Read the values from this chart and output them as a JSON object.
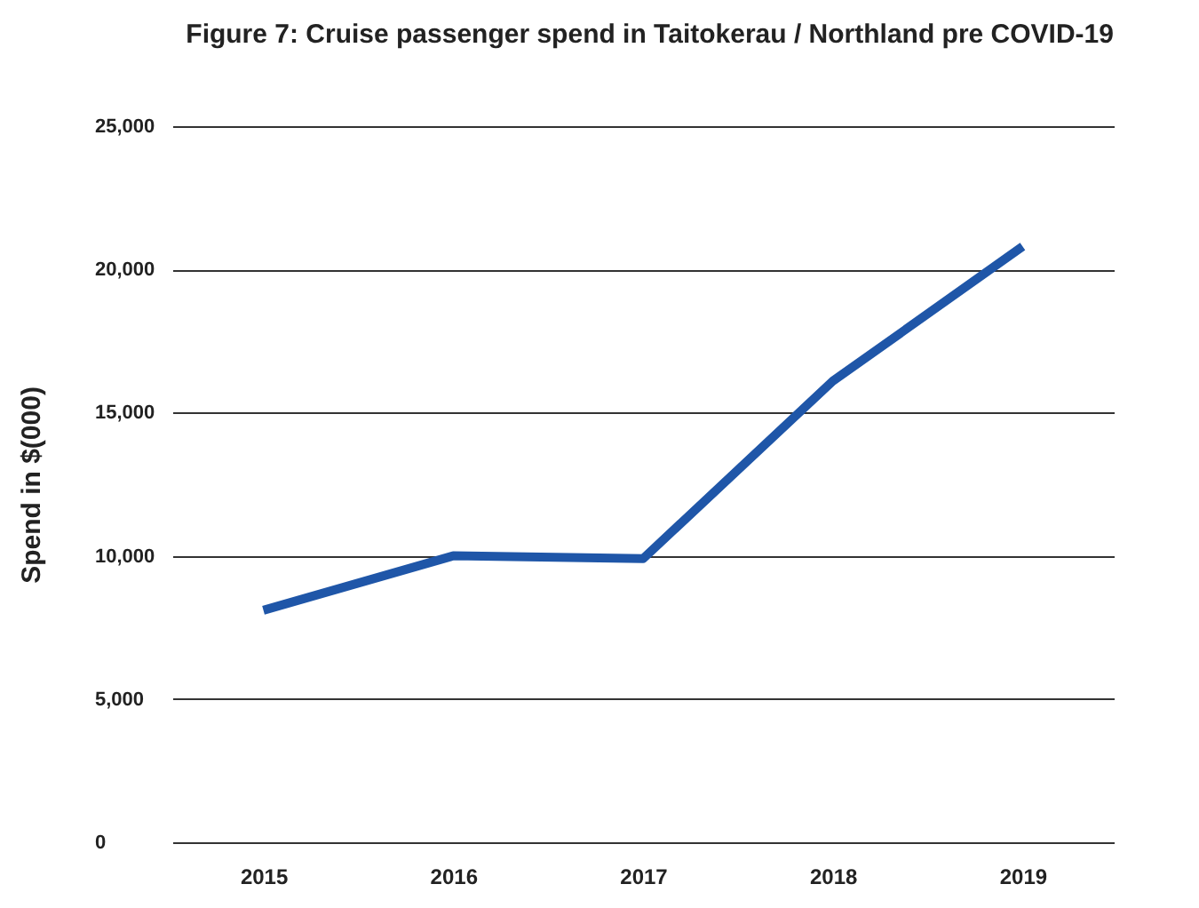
{
  "chart_data": {
    "type": "line",
    "title": "Figure 7: Cruise passenger spend in Taitokerau / Northland pre COVID-19",
    "ylabel": "Spend in $(000)",
    "categories": [
      "2015",
      "2016",
      "2017",
      "2018",
      "2019"
    ],
    "series": [
      {
        "color": "#1f56a8",
        "values": [
          8100,
          10000,
          9900,
          16100,
          20800
        ]
      }
    ],
    "ylim": [
      0,
      25000
    ],
    "yticks": [
      {
        "value": 0,
        "label": "0"
      },
      {
        "value": 5000,
        "label": "5,000"
      },
      {
        "value": 10000,
        "label": "10,000"
      },
      {
        "value": 15000,
        "label": "15,000"
      },
      {
        "value": 20000,
        "label": "20,000"
      },
      {
        "value": 25000,
        "label": "25,000"
      }
    ],
    "grid": "y",
    "marker": "none",
    "line_style": "solid"
  }
}
